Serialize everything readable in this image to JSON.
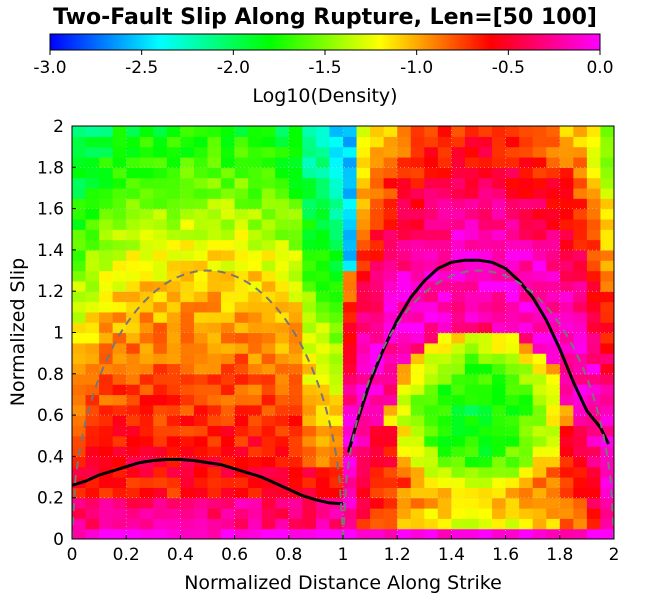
{
  "chart_data": {
    "type": "heatmap",
    "title": "Two-Fault Slip Along Rupture, Len=[50 100]",
    "xlabel": "Normalized Distance Along Strike",
    "ylabel": "Normalized Slip",
    "xlim": [
      0,
      2
    ],
    "ylim": [
      0,
      2
    ],
    "xticks": [
      "0",
      "0.2",
      "0.4",
      "0.6",
      "0.8",
      "1",
      "1.2",
      "1.4",
      "1.6",
      "1.8",
      "2"
    ],
    "yticks": [
      "0",
      "0.2",
      "0.4",
      "0.6",
      "0.8",
      "1",
      "1.2",
      "1.4",
      "1.6",
      "1.8",
      "2"
    ],
    "grid": true,
    "colorbar": {
      "label": "Log10(Density)",
      "range": [
        -3.0,
        0.0
      ],
      "ticks": [
        "-3.0",
        "-2.5",
        "-2.0",
        "-1.5",
        "-1.0",
        "-0.5",
        "0.0"
      ],
      "colormap": "jet-to-magenta",
      "colors": [
        "#0000ff",
        "#00ffff",
        "#00ff00",
        "#ffff00",
        "#ff0000",
        "#ff00ff"
      ]
    },
    "grid_size": {
      "nx": 40,
      "ny": 40
    },
    "series": [
      {
        "style": "solid",
        "color": "#000000",
        "x": [
          0.0,
          0.05,
          0.1,
          0.15,
          0.2,
          0.25,
          0.3,
          0.35,
          0.4,
          0.45,
          0.5,
          0.55,
          0.6,
          0.65,
          0.7,
          0.75,
          0.8,
          0.85,
          0.9,
          0.95,
          1.0
        ],
        "y": [
          0.26,
          0.28,
          0.31,
          0.33,
          0.35,
          0.37,
          0.38,
          0.385,
          0.385,
          0.38,
          0.37,
          0.36,
          0.34,
          0.32,
          0.3,
          0.27,
          0.24,
          0.21,
          0.19,
          0.175,
          0.17
        ]
      },
      {
        "style": "solid",
        "color": "#000000",
        "x": [
          1.02,
          1.05,
          1.1,
          1.15,
          1.2,
          1.25,
          1.3,
          1.35,
          1.4,
          1.45,
          1.5,
          1.55,
          1.6,
          1.65,
          1.7,
          1.75,
          1.8,
          1.85,
          1.9,
          1.95,
          1.98
        ],
        "y": [
          0.42,
          0.56,
          0.76,
          0.92,
          1.06,
          1.17,
          1.25,
          1.31,
          1.34,
          1.35,
          1.35,
          1.34,
          1.31,
          1.25,
          1.17,
          1.06,
          0.92,
          0.76,
          0.62,
          0.54,
          0.46
        ]
      },
      {
        "style": "dashed",
        "color": "#777777",
        "shape": "semi-ellipse",
        "center": 0.5,
        "half_width": 0.5,
        "peak": 1.3
      },
      {
        "style": "dashed",
        "color": "#777777",
        "shape": "semi-ellipse",
        "center": 1.5,
        "half_width": 0.5,
        "peak": 1.3
      }
    ]
  }
}
